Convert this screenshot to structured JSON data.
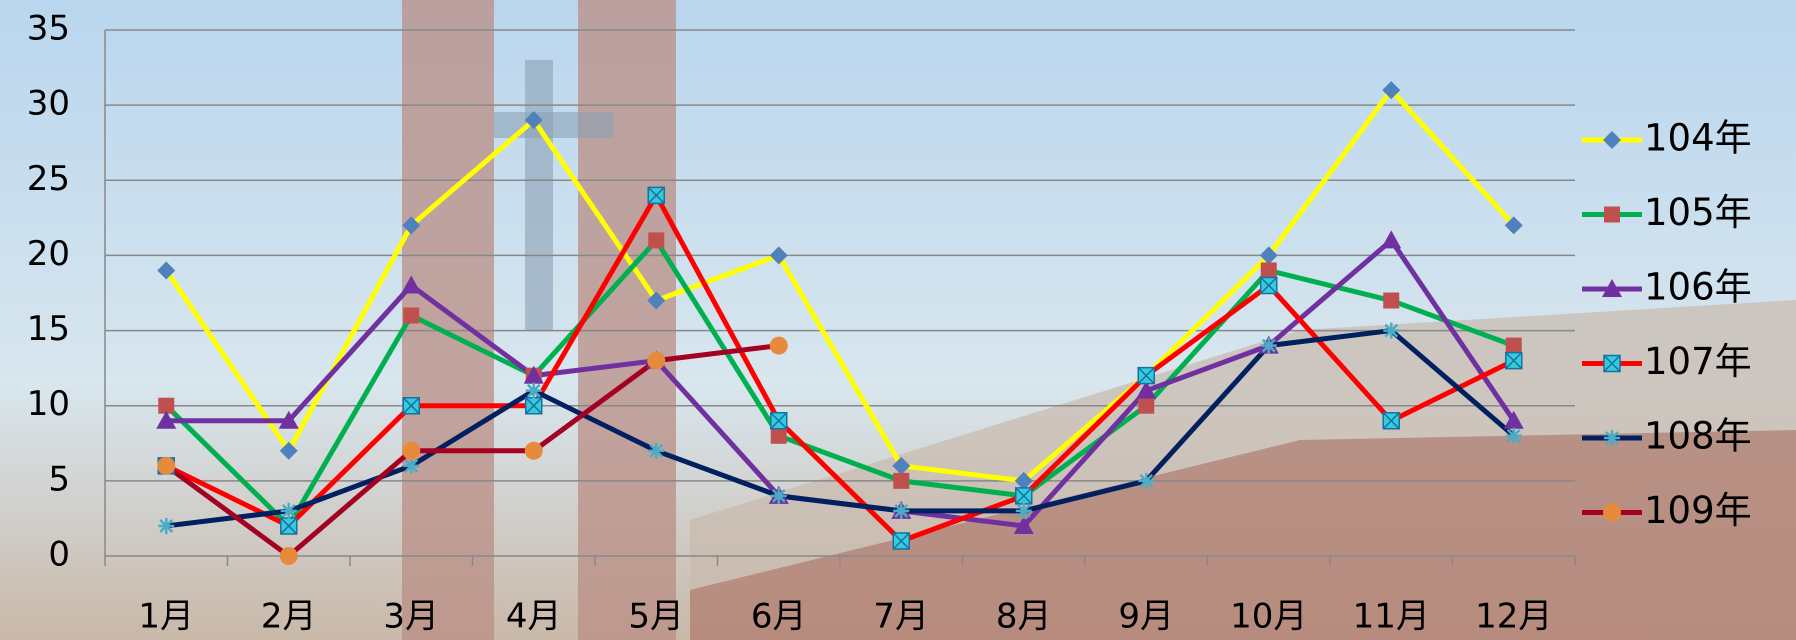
{
  "chart_data": {
    "type": "line",
    "categories": [
      "1月",
      "2月",
      "3月",
      "4月",
      "5月",
      "6月",
      "7月",
      "8月",
      "9月",
      "10月",
      "11月",
      "12月"
    ],
    "series": [
      {
        "name": "104年",
        "color": "#ffff00",
        "marker_color": "#4f81bd",
        "marker": "diamond",
        "values": [
          19,
          7,
          22,
          29,
          17,
          20,
          6,
          5,
          12,
          20,
          31,
          22
        ]
      },
      {
        "name": "105年",
        "color": "#00b050",
        "marker_color": "#c0504d",
        "marker": "square",
        "values": [
          10,
          2,
          16,
          12,
          21,
          8,
          5,
          4,
          10,
          19,
          17,
          14
        ]
      },
      {
        "name": "106年",
        "color": "#7030a0",
        "marker_color": "#7030a0",
        "marker": "triangle",
        "values": [
          9,
          9,
          18,
          12,
          13,
          4,
          3,
          2,
          11,
          14,
          21,
          9
        ]
      },
      {
        "name": "107年",
        "color": "#ff0000",
        "marker_color": "#33ccdd",
        "marker": "xsquare",
        "values": [
          6,
          2,
          10,
          10,
          24,
          9,
          1,
          4,
          12,
          18,
          9,
          13
        ]
      },
      {
        "name": "108年",
        "color": "#002060",
        "marker_color": "#4bacc6",
        "marker": "star",
        "values": [
          2,
          3,
          6,
          11,
          7,
          4,
          3,
          3,
          5,
          14,
          15,
          8
        ]
      },
      {
        "name": "109年",
        "color": "#a50021",
        "marker_color": "#e88a3c",
        "marker": "circle",
        "values": [
          6,
          0,
          7,
          7,
          13,
          14,
          null,
          null,
          null,
          null,
          null,
          null
        ]
      }
    ],
    "ylim": [
      0,
      35
    ],
    "yticks": [
      0,
      5,
      10,
      15,
      20,
      25,
      30,
      35
    ],
    "grid": true,
    "legend": "right"
  }
}
